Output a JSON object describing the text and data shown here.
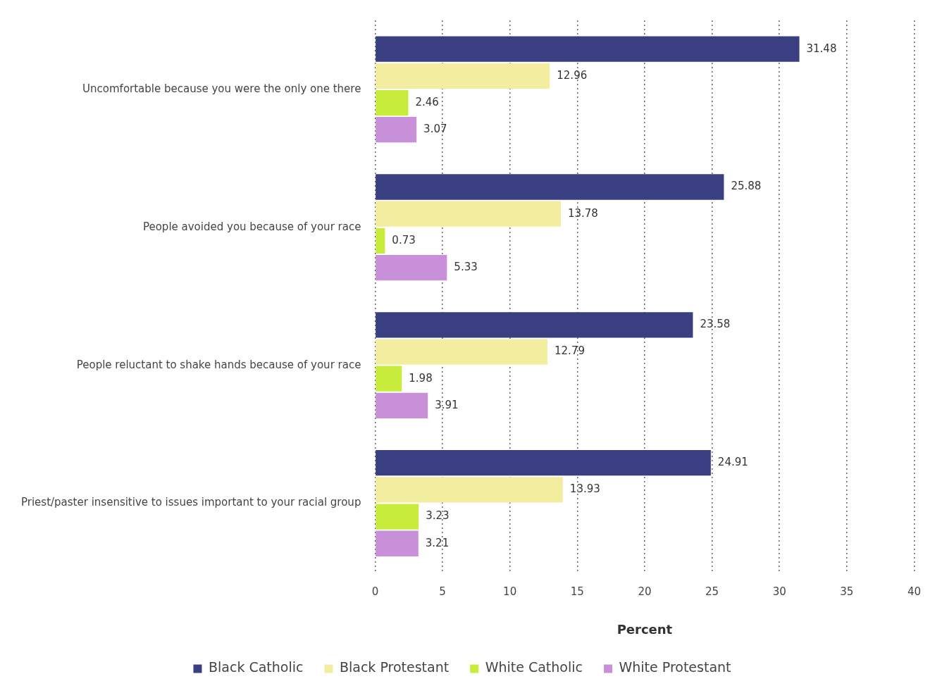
{
  "chart_data": {
    "type": "bar",
    "orientation": "horizontal",
    "xlabel": "Percent",
    "categories": [
      "Uncomfortable because you were the only one there",
      "People avoided you because of your race",
      "People reluctant to shake hands because of your race",
      "Priest/paster insensitive to issues important to your racial group"
    ],
    "series": [
      {
        "name": "Black Catholic",
        "color": "#3a3f82",
        "values": [
          31.48,
          25.88,
          23.58,
          24.91
        ]
      },
      {
        "name": "Black Protestant",
        "color": "#f3eda0",
        "values": [
          12.96,
          13.78,
          12.79,
          13.93
        ]
      },
      {
        "name": "White Catholic",
        "color": "#c8ec3c",
        "values": [
          2.46,
          0.73,
          1.98,
          3.23
        ]
      },
      {
        "name": "White Protestant",
        "color": "#c890d8",
        "values": [
          3.07,
          5.33,
          3.91,
          3.21
        ]
      }
    ],
    "xlim": [
      0,
      40
    ],
    "xticks": [
      0,
      5,
      10,
      15,
      20,
      25,
      30,
      35,
      40
    ],
    "grid": "x",
    "legend": "bottom",
    "data_labels": true
  }
}
